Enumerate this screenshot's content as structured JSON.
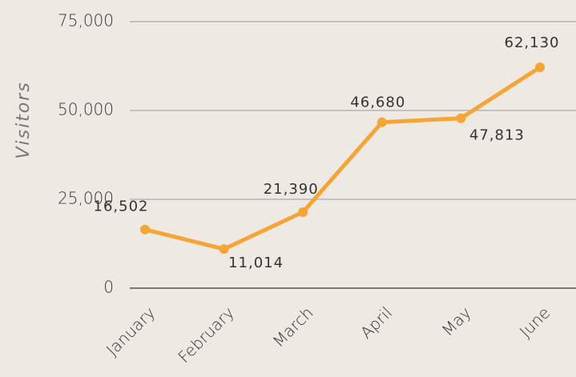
{
  "chart_data": {
    "type": "line",
    "y_label": "Visitors",
    "categories": [
      "January",
      "February",
      "March",
      "April",
      "May",
      "June"
    ],
    "series": [
      {
        "name": "Visitors",
        "color": "#f4a535",
        "values": [
          16502,
          11014,
          21390,
          46680,
          47813,
          62130
        ],
        "value_labels": [
          "16,502",
          "11,014",
          "21,390",
          "46,680",
          "47,813",
          "62,130"
        ]
      }
    ],
    "ylim": [
      0,
      75000
    ],
    "yticks": [
      0,
      {
        "value": 25000,
        "label": "25,000"
      },
      {
        "value": 50000,
        "label": "50,000"
      },
      {
        "value": 75000,
        "label": "75,000"
      }
    ],
    "grid": true
  }
}
